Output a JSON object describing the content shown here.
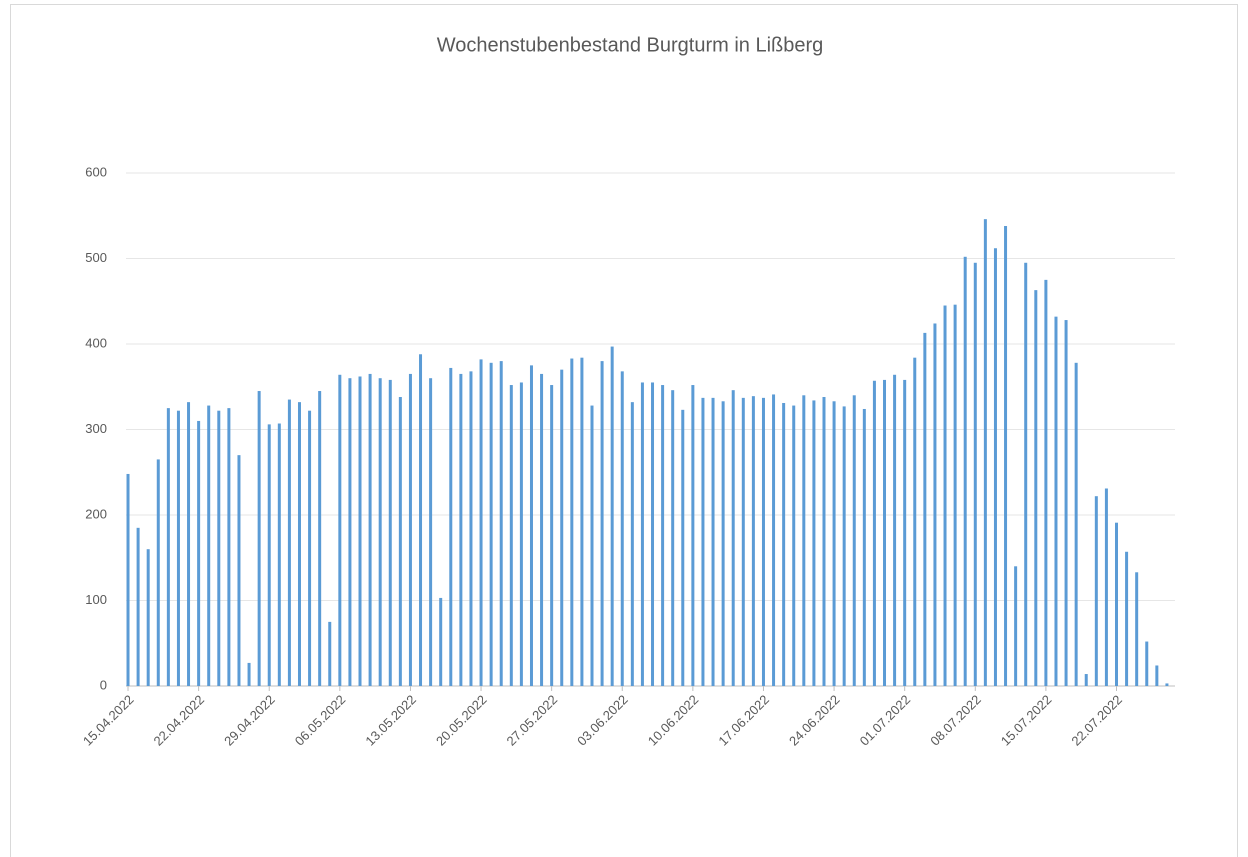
{
  "chart_data": {
    "type": "bar",
    "title": "Wochenstubenbestand  Burgturm in Lißberg",
    "categories": [
      "15.04.2022",
      null,
      null,
      null,
      null,
      null,
      null,
      "22.04.2022",
      null,
      null,
      null,
      null,
      null,
      null,
      "29.04.2022",
      null,
      null,
      null,
      null,
      null,
      null,
      "06.05.2022",
      null,
      null,
      null,
      null,
      null,
      null,
      "13.05.2022",
      null,
      null,
      null,
      null,
      null,
      null,
      "20.05.2022",
      null,
      null,
      null,
      null,
      null,
      null,
      "27.05.2022",
      null,
      null,
      null,
      null,
      null,
      null,
      "03.06.2022",
      null,
      null,
      null,
      null,
      null,
      null,
      "10.06.2022",
      null,
      null,
      null,
      null,
      null,
      null,
      "17.06.2022",
      null,
      null,
      null,
      null,
      null,
      null,
      "24.06.2022",
      null,
      null,
      null,
      null,
      null,
      null,
      "01.07.2022",
      null,
      null,
      null,
      null,
      null,
      null,
      "08.07.2022",
      null,
      null,
      null,
      null,
      null,
      null,
      "15.07.2022",
      null,
      null,
      null,
      null,
      null,
      null,
      "22.07.2022",
      null,
      null,
      null,
      null,
      null
    ],
    "values": [
      248,
      185,
      160,
      265,
      325,
      322,
      332,
      310,
      328,
      322,
      325,
      270,
      27,
      345,
      306,
      307,
      335,
      332,
      322,
      345,
      75,
      364,
      360,
      362,
      365,
      360,
      358,
      338,
      365,
      388,
      360,
      103,
      372,
      365,
      368,
      382,
      378,
      380,
      352,
      355,
      375,
      365,
      352,
      370,
      383,
      384,
      328,
      380,
      397,
      368,
      332,
      355,
      355,
      352,
      346,
      323,
      352,
      337,
      337,
      333,
      346,
      337,
      339,
      337,
      341,
      331,
      328,
      340,
      334,
      338,
      333,
      327,
      340,
      324,
      357,
      358,
      364,
      358,
      384,
      413,
      424,
      445,
      446,
      502,
      495,
      546,
      512,
      538,
      140,
      495,
      463,
      475,
      432,
      428,
      378,
      14,
      222,
      231,
      191,
      157,
      133,
      52,
      24,
      3
    ],
    "color": "#5b9bd5",
    "ylim": [
      0,
      600
    ],
    "yticks": [
      0,
      100,
      200,
      300,
      400,
      500,
      600
    ],
    "grid": true
  }
}
